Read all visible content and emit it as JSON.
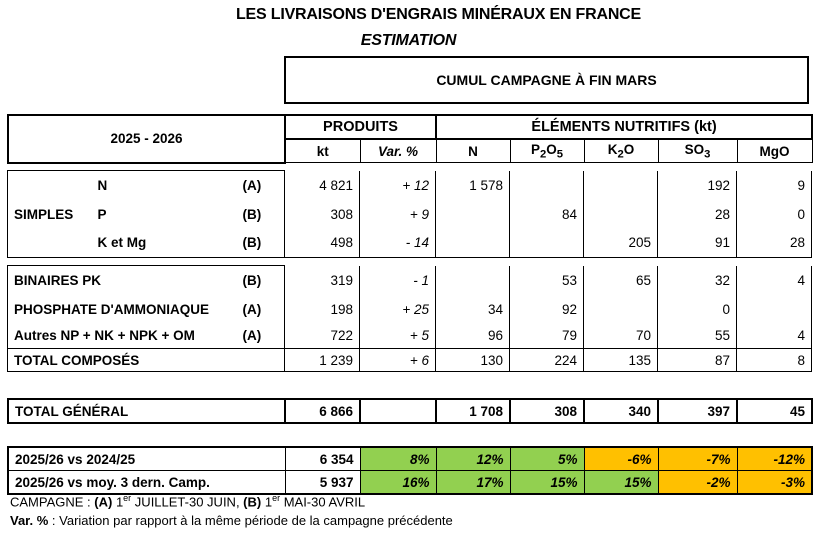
{
  "title": "LES LIVRAISONS D'ENGRAIS MINÉRAUX EN FRANCE",
  "subtitle": "ESTIMATION",
  "cumul_label": "CUMUL CAMPAGNE À FIN MARS",
  "header": {
    "season": "2025 - 2026",
    "produits": "PRODUITS",
    "elements": "ÉLÉMENTS NUTRITIFS (kt)",
    "kt": "kt",
    "var": "Var. %",
    "n": "N",
    "p2o5": "P2O5",
    "k2o": "K2O",
    "so3": "SO3",
    "mgo": "MgO"
  },
  "simples": {
    "group_label": "SIMPLES",
    "rows": [
      {
        "name": "N",
        "code": "(A)",
        "kt": "4 821",
        "var": "+ 12",
        "n": "1 578",
        "p2o5": "",
        "k2o": "",
        "so3": "192",
        "mgo": "9"
      },
      {
        "name": "P",
        "code": "(B)",
        "kt": "308",
        "var": "+ 9",
        "n": "",
        "p2o5": "84",
        "k2o": "",
        "so3": "28",
        "mgo": "0"
      },
      {
        "name": "K et Mg",
        "code": "(B)",
        "kt": "498",
        "var": "- 14",
        "n": "",
        "p2o5": "",
        "k2o": "205",
        "so3": "91",
        "mgo": "28"
      }
    ]
  },
  "composes": {
    "rows": [
      {
        "name": "BINAIRES PK",
        "code": "(B)",
        "kt": "319",
        "var": "- 1",
        "n": "",
        "p2o5": "53",
        "k2o": "65",
        "so3": "32",
        "mgo": "4"
      },
      {
        "name": "PHOSPHATE D'AMMONIAQUE",
        "code": "(A)",
        "kt": "198",
        "var": "+ 25",
        "n": "34",
        "p2o5": "92",
        "k2o": "",
        "so3": "0",
        "mgo": ""
      },
      {
        "name": "Autres NP + NK + NPK + OM",
        "code": "(A)",
        "kt": "722",
        "var": "+ 5",
        "n": "96",
        "p2o5": "79",
        "k2o": "70",
        "so3": "55",
        "mgo": "4"
      }
    ],
    "total": {
      "name": "TOTAL COMPOSÉS",
      "kt": "1 239",
      "var": "+ 6",
      "n": "130",
      "p2o5": "224",
      "k2o": "135",
      "so3": "87",
      "mgo": "8"
    }
  },
  "total_general": {
    "name": "TOTAL GÉNÉRAL",
    "kt": "6 866",
    "var": "",
    "n": "1 708",
    "p2o5": "308",
    "k2o": "340",
    "so3": "397",
    "mgo": "45"
  },
  "comparisons": [
    {
      "name": "2025/26 vs 2024/25",
      "kt": "6 354",
      "var": "8%",
      "n": "12%",
      "p2o5": "5%",
      "k2o": "-6%",
      "so3": "-7%",
      "mgo": "-12%"
    },
    {
      "name": "2025/26 vs moy. 3 dern. Camp.",
      "kt": "5 937",
      "var": "16%",
      "n": "17%",
      "p2o5": "15%",
      "k2o": "15%",
      "so3": "-2%",
      "mgo": "-3%"
    }
  ],
  "colors": {
    "positive": "#92d050",
    "negative": "#ffc000"
  },
  "footnote1": "CAMPAGNE : (A) 1er JUILLET-30 JUIN, (B) 1er MAI-30 AVRIL",
  "footnote2": "Var. % : Variation par rapport à la même période de la campagne précédente"
}
